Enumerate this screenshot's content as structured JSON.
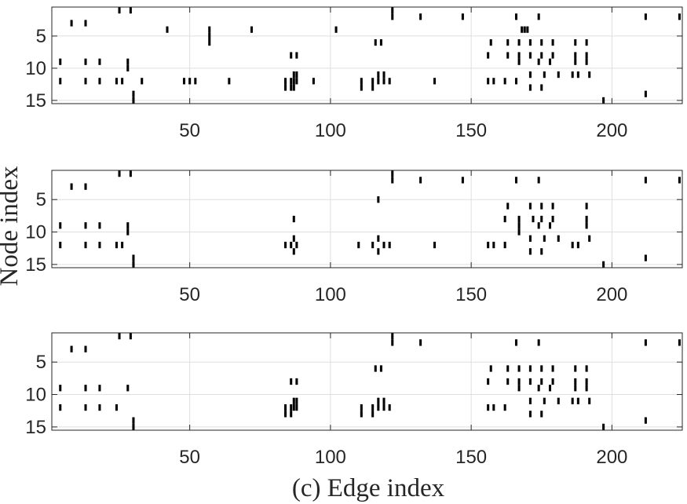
{
  "figure": {
    "xlabel": "(c) Edge index",
    "ylabel": "Node index"
  },
  "chart_data": [
    {
      "type": "heatmap",
      "title": "",
      "xlabel": "",
      "ylabel": "",
      "xlim": [
        1,
        225
      ],
      "ylim": [
        15,
        1
      ],
      "y_reversed": true,
      "grid": true,
      "xticks": [
        50,
        100,
        150,
        200
      ],
      "yticks": [
        5,
        10,
        15
      ],
      "marks": [
        [
          8,
          3
        ],
        [
          13,
          3
        ],
        [
          25,
          1
        ],
        [
          29,
          1
        ],
        [
          42,
          4
        ],
        [
          57,
          4
        ],
        [
          57,
          5
        ],
        [
          57,
          6
        ],
        [
          72,
          4
        ],
        [
          102,
          4
        ],
        [
          122,
          1
        ],
        [
          122,
          2
        ],
        [
          132,
          2
        ],
        [
          147,
          2
        ],
        [
          166,
          2
        ],
        [
          174,
          2
        ],
        [
          212,
          2
        ],
        [
          224,
          2
        ],
        [
          4,
          9
        ],
        [
          13,
          9
        ],
        [
          18,
          9
        ],
        [
          28,
          9
        ],
        [
          28,
          10
        ],
        [
          4,
          12
        ],
        [
          13,
          12
        ],
        [
          18,
          12
        ],
        [
          24,
          12
        ],
        [
          26,
          12
        ],
        [
          33,
          12
        ],
        [
          48,
          12
        ],
        [
          50,
          12
        ],
        [
          52,
          12
        ],
        [
          64,
          12
        ],
        [
          84,
          12
        ],
        [
          84,
          13
        ],
        [
          86,
          12
        ],
        [
          86,
          13
        ],
        [
          87,
          11
        ],
        [
          87,
          12
        ],
        [
          87,
          13
        ],
        [
          88,
          11
        ],
        [
          88,
          12
        ],
        [
          94,
          12
        ],
        [
          111,
          12
        ],
        [
          111,
          13
        ],
        [
          115,
          12
        ],
        [
          115,
          13
        ],
        [
          117,
          11
        ],
        [
          117,
          12
        ],
        [
          119,
          11
        ],
        [
          119,
          12
        ],
        [
          121,
          12
        ],
        [
          137,
          12
        ],
        [
          30,
          14
        ],
        [
          30,
          15
        ],
        [
          197,
          15
        ],
        [
          212,
          14
        ],
        [
          116,
          6
        ],
        [
          118,
          6
        ],
        [
          86,
          8
        ],
        [
          88,
          8
        ],
        [
          157,
          6
        ],
        [
          163,
          6
        ],
        [
          167,
          6
        ],
        [
          171,
          6
        ],
        [
          175,
          6
        ],
        [
          179,
          6
        ],
        [
          187,
          6
        ],
        [
          191,
          6
        ],
        [
          156,
          8
        ],
        [
          163,
          8
        ],
        [
          167,
          8
        ],
        [
          171,
          8
        ],
        [
          175,
          8
        ],
        [
          179,
          8
        ],
        [
          187,
          8
        ],
        [
          191,
          8
        ],
        [
          168,
          4
        ],
        [
          169,
          4
        ],
        [
          170,
          4
        ],
        [
          167,
          9
        ],
        [
          174,
          9
        ],
        [
          178,
          9
        ],
        [
          187,
          9
        ],
        [
          191,
          9
        ],
        [
          156,
          12
        ],
        [
          158,
          12
        ],
        [
          162,
          12
        ],
        [
          166,
          12
        ],
        [
          171,
          11
        ],
        [
          176,
          11
        ],
        [
          181,
          11
        ],
        [
          186,
          11
        ],
        [
          188,
          11
        ],
        [
          192,
          11
        ],
        [
          171,
          13
        ],
        [
          175,
          13
        ]
      ]
    },
    {
      "type": "heatmap",
      "title": "",
      "xlabel": "",
      "ylabel": "",
      "xlim": [
        1,
        225
      ],
      "ylim": [
        15,
        1
      ],
      "y_reversed": true,
      "grid": true,
      "xticks": [
        50,
        100,
        150,
        200
      ],
      "yticks": [
        5,
        10,
        15
      ],
      "marks": [
        [
          8,
          3
        ],
        [
          13,
          3
        ],
        [
          25,
          1
        ],
        [
          29,
          1
        ],
        [
          122,
          1
        ],
        [
          122,
          2
        ],
        [
          132,
          2
        ],
        [
          147,
          2
        ],
        [
          166,
          2
        ],
        [
          174,
          2
        ],
        [
          212,
          2
        ],
        [
          224,
          2
        ],
        [
          117,
          5
        ],
        [
          4,
          9
        ],
        [
          13,
          9
        ],
        [
          18,
          9
        ],
        [
          28,
          9
        ],
        [
          28,
          10
        ],
        [
          4,
          12
        ],
        [
          13,
          12
        ],
        [
          18,
          12
        ],
        [
          24,
          12
        ],
        [
          26,
          12
        ],
        [
          87,
          8
        ],
        [
          87,
          11
        ],
        [
          87,
          13
        ],
        [
          86,
          12
        ],
        [
          88,
          12
        ],
        [
          84,
          12
        ],
        [
          110,
          12
        ],
        [
          115,
          12
        ],
        [
          117,
          11
        ],
        [
          117,
          13
        ],
        [
          119,
          12
        ],
        [
          121,
          12
        ],
        [
          137,
          12
        ],
        [
          30,
          14
        ],
        [
          30,
          15
        ],
        [
          197,
          15
        ],
        [
          212,
          14
        ],
        [
          163,
          6
        ],
        [
          171,
          6
        ],
        [
          175,
          6
        ],
        [
          179,
          6
        ],
        [
          191,
          6
        ],
        [
          162,
          8
        ],
        [
          167,
          8
        ],
        [
          172,
          8
        ],
        [
          175,
          8
        ],
        [
          179,
          8
        ],
        [
          191,
          8
        ],
        [
          167,
          9
        ],
        [
          167,
          10
        ],
        [
          174,
          9
        ],
        [
          178,
          9
        ],
        [
          191,
          9
        ],
        [
          156,
          12
        ],
        [
          158,
          12
        ],
        [
          162,
          12
        ],
        [
          171,
          11
        ],
        [
          176,
          11
        ],
        [
          181,
          11
        ],
        [
          186,
          12
        ],
        [
          188,
          12
        ],
        [
          192,
          11
        ],
        [
          171,
          13
        ],
        [
          175,
          13
        ]
      ]
    },
    {
      "type": "heatmap",
      "title": "",
      "xlabel": "",
      "ylabel": "",
      "xlim": [
        1,
        225
      ],
      "ylim": [
        15,
        1
      ],
      "y_reversed": true,
      "grid": true,
      "xticks": [
        50,
        100,
        150,
        200
      ],
      "yticks": [
        5,
        10,
        15
      ],
      "marks": [
        [
          8,
          3
        ],
        [
          13,
          3
        ],
        [
          25,
          1
        ],
        [
          29,
          1
        ],
        [
          122,
          1
        ],
        [
          122,
          2
        ],
        [
          132,
          2
        ],
        [
          166,
          2
        ],
        [
          174,
          2
        ],
        [
          212,
          2
        ],
        [
          224,
          2
        ],
        [
          116,
          6
        ],
        [
          118,
          6
        ],
        [
          86,
          8
        ],
        [
          88,
          8
        ],
        [
          4,
          9
        ],
        [
          13,
          9
        ],
        [
          18,
          9
        ],
        [
          28,
          9
        ],
        [
          4,
          12
        ],
        [
          13,
          12
        ],
        [
          18,
          12
        ],
        [
          24,
          12
        ],
        [
          84,
          12
        ],
        [
          84,
          13
        ],
        [
          86,
          12
        ],
        [
          86,
          13
        ],
        [
          87,
          11
        ],
        [
          87,
          12
        ],
        [
          88,
          11
        ],
        [
          88,
          12
        ],
        [
          111,
          12
        ],
        [
          111,
          13
        ],
        [
          115,
          12
        ],
        [
          115,
          13
        ],
        [
          117,
          11
        ],
        [
          117,
          12
        ],
        [
          119,
          11
        ],
        [
          119,
          12
        ],
        [
          121,
          12
        ],
        [
          30,
          14
        ],
        [
          30,
          15
        ],
        [
          197,
          15
        ],
        [
          212,
          14
        ],
        [
          157,
          6
        ],
        [
          163,
          6
        ],
        [
          167,
          6
        ],
        [
          171,
          6
        ],
        [
          175,
          6
        ],
        [
          179,
          6
        ],
        [
          187,
          6
        ],
        [
          191,
          6
        ],
        [
          156,
          8
        ],
        [
          163,
          8
        ],
        [
          167,
          8
        ],
        [
          171,
          8
        ],
        [
          175,
          8
        ],
        [
          179,
          8
        ],
        [
          187,
          8
        ],
        [
          191,
          8
        ],
        [
          167,
          9
        ],
        [
          174,
          9
        ],
        [
          178,
          9
        ],
        [
          187,
          9
        ],
        [
          191,
          9
        ],
        [
          156,
          12
        ],
        [
          158,
          12
        ],
        [
          162,
          12
        ],
        [
          171,
          11
        ],
        [
          176,
          11
        ],
        [
          181,
          11
        ],
        [
          186,
          11
        ],
        [
          188,
          11
        ],
        [
          192,
          11
        ],
        [
          171,
          13
        ],
        [
          175,
          13
        ]
      ]
    }
  ]
}
